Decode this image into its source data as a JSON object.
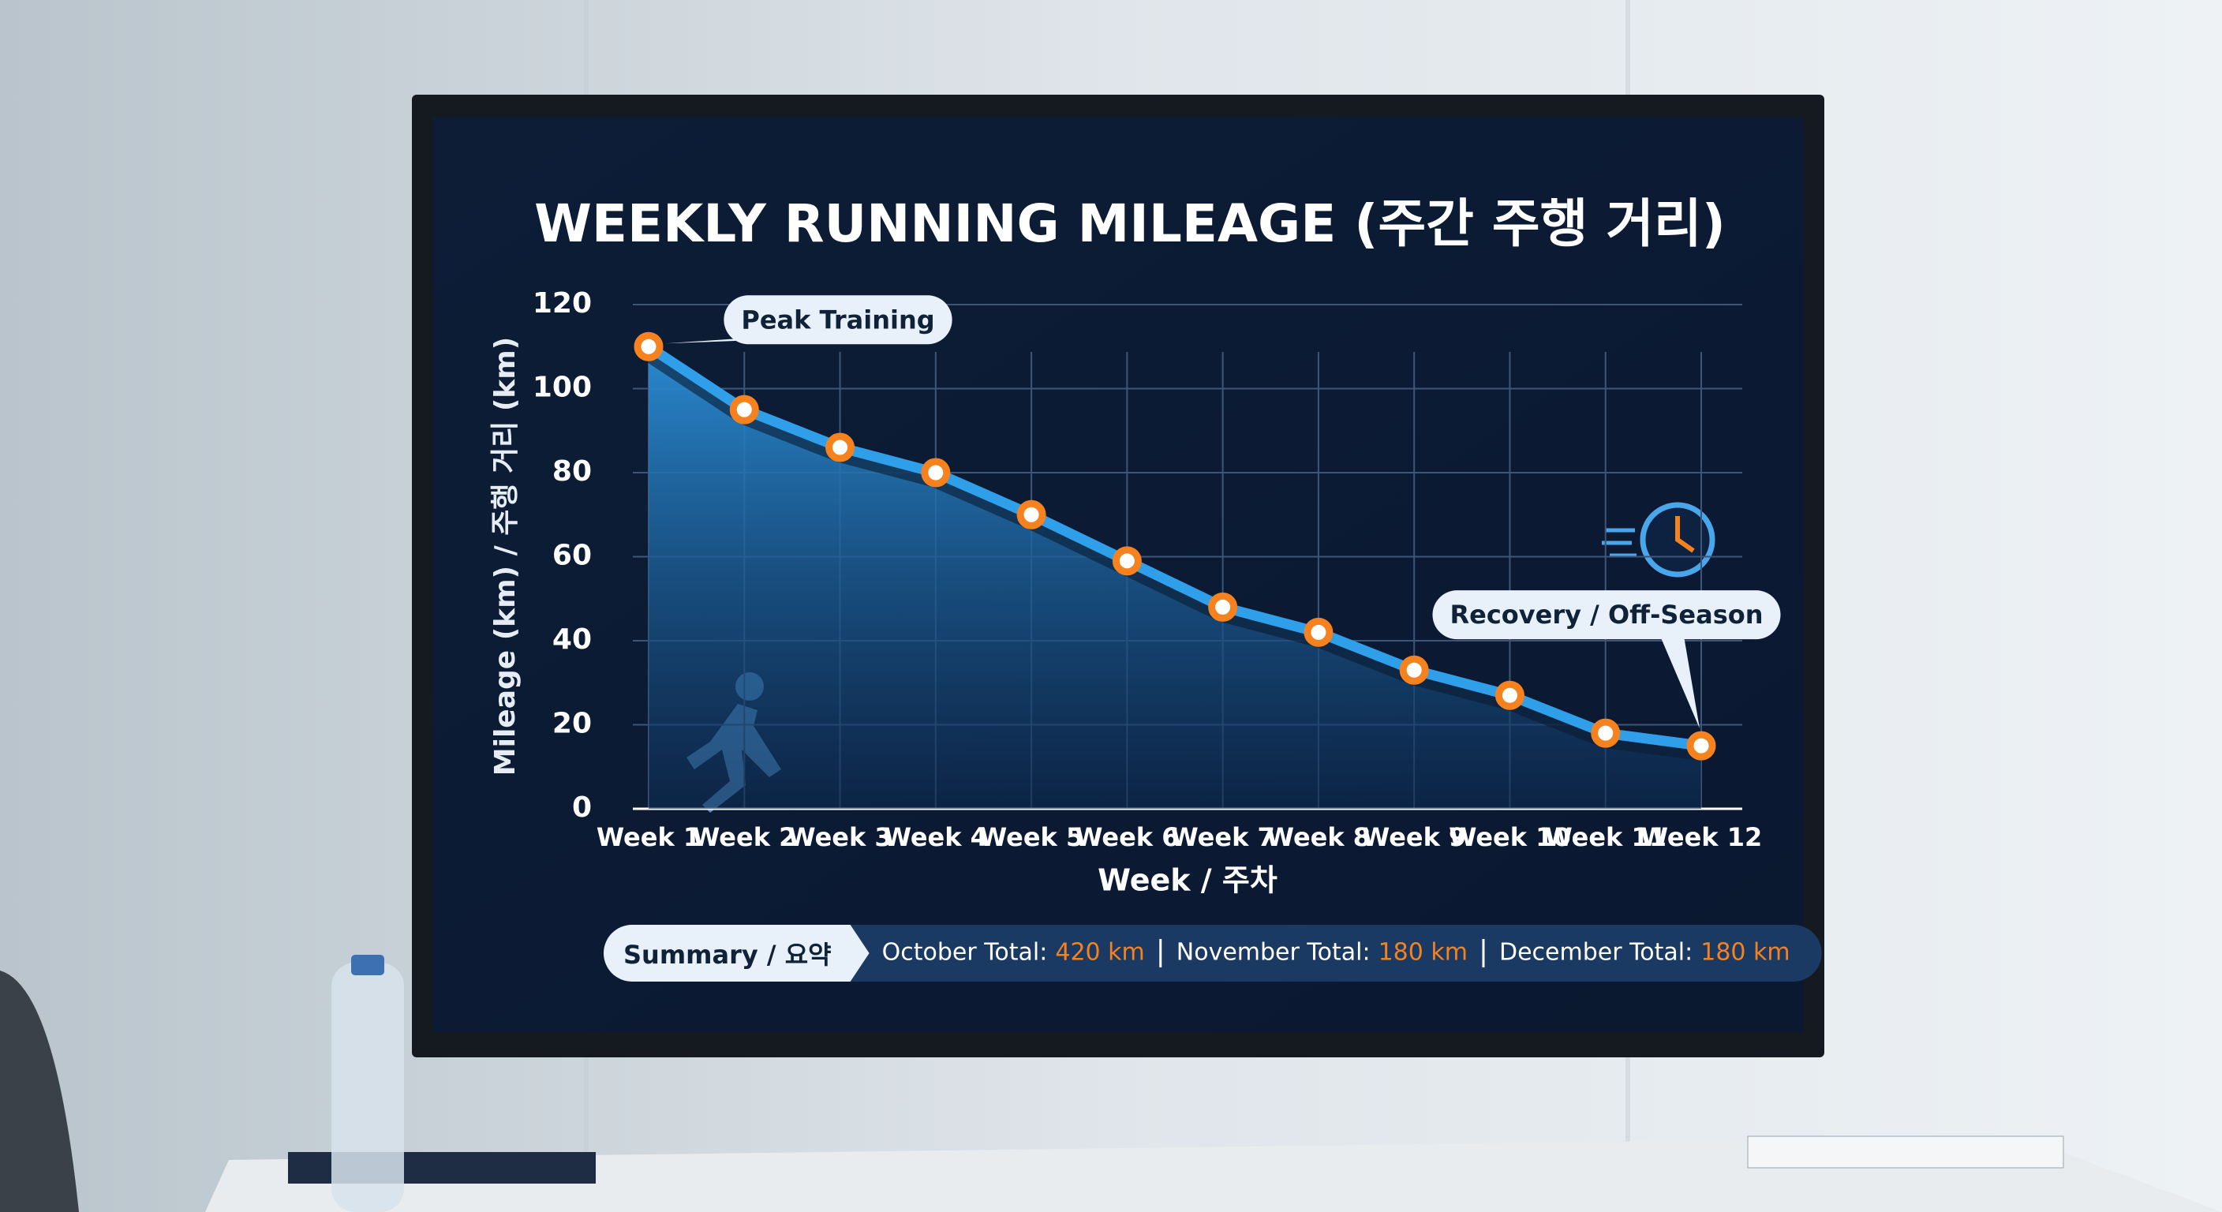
{
  "chart_data": {
    "type": "line",
    "title": "WEEKLY RUNNING MILEAGE (주간 주행 거리)",
    "x_label": "Week / 주차",
    "y_label": "Mileage (km) / 주행 거리 (km)",
    "categories": [
      "Week 1",
      "Week 2",
      "Week 3",
      "Week 4",
      "Week 5",
      "Week 6",
      "Week 7",
      "Week 8",
      "Week 9",
      "Week 10",
      "Week 11",
      "Week 12"
    ],
    "values": [
      110,
      95,
      86,
      80,
      70,
      59,
      48,
      42,
      33,
      27,
      18,
      15
    ],
    "color": "#2f9fea",
    "marker_color": "#f5821f",
    "ylim": [
      0,
      120
    ],
    "yticks": [
      0,
      20,
      40,
      60,
      80,
      100,
      120
    ],
    "grid": true,
    "annotations": [
      {
        "text": "Peak Training",
        "category": 0
      },
      {
        "text": "Recovery / Off-Season",
        "category": 11
      }
    ],
    "summary": {
      "title": "Summary / 요약",
      "items": [
        {
          "label": "October Total:",
          "value": "420 km"
        },
        {
          "label": "November Total:",
          "value": "180 km"
        },
        {
          "label": "December Total:",
          "value": "180 km"
        }
      ]
    }
  }
}
